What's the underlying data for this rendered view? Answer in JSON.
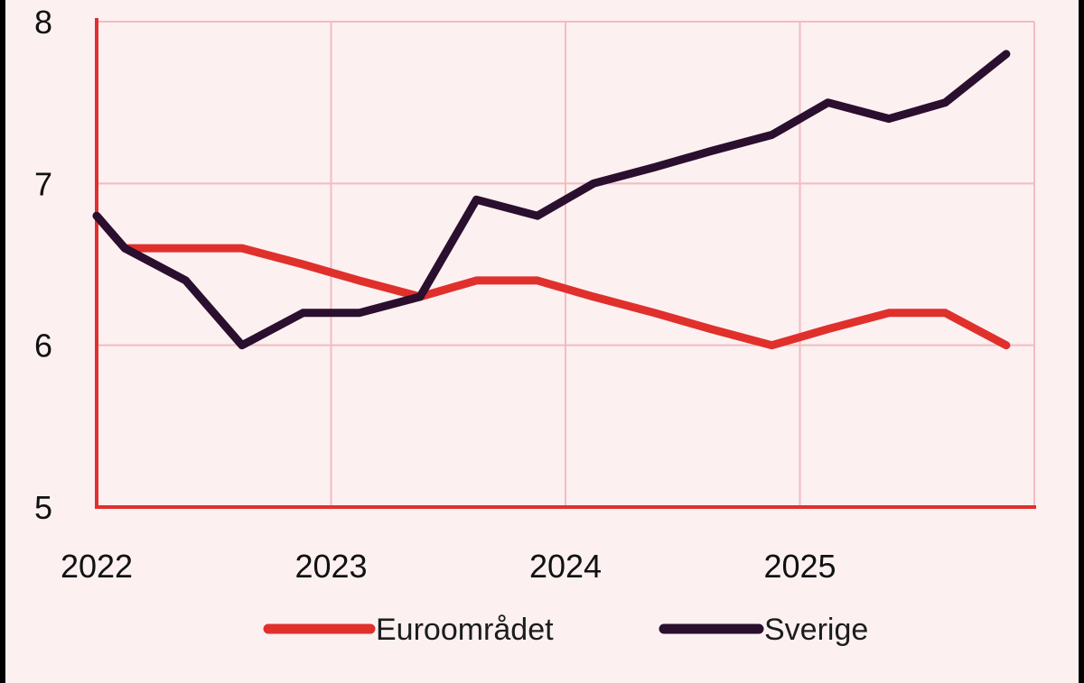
{
  "chart_data": {
    "type": "line",
    "xlim": [
      2022,
      2026
    ],
    "ylim": [
      5,
      8
    ],
    "x_ticks": [
      "2022",
      "2023",
      "2024",
      "2025"
    ],
    "y_ticks": [
      "5",
      "6",
      "7",
      "8"
    ],
    "grid": true,
    "legend_position": "bottom",
    "series": [
      {
        "name": "Euroområdet",
        "color": "#e0302c",
        "points": [
          [
            2022.0,
            6.8
          ],
          [
            2022.12,
            6.6
          ],
          [
            2022.25,
            6.6
          ],
          [
            2022.38,
            6.6
          ],
          [
            2022.62,
            6.6
          ],
          [
            2022.88,
            6.5
          ],
          [
            2023.12,
            6.4
          ],
          [
            2023.38,
            6.3
          ],
          [
            2023.62,
            6.4
          ],
          [
            2023.88,
            6.4
          ],
          [
            2024.12,
            6.3
          ],
          [
            2024.38,
            6.2
          ],
          [
            2024.62,
            6.1
          ],
          [
            2024.88,
            6.0
          ],
          [
            2025.12,
            6.1
          ],
          [
            2025.38,
            6.2
          ],
          [
            2025.62,
            6.2
          ],
          [
            2025.88,
            6.0
          ]
        ]
      },
      {
        "name": "Sverige",
        "color": "#2a0f2e",
        "points": [
          [
            2022.0,
            6.8
          ],
          [
            2022.12,
            6.6
          ],
          [
            2022.38,
            6.4
          ],
          [
            2022.62,
            6.0
          ],
          [
            2022.88,
            6.2
          ],
          [
            2023.12,
            6.2
          ],
          [
            2023.38,
            6.3
          ],
          [
            2023.62,
            6.9
          ],
          [
            2023.88,
            6.8
          ],
          [
            2024.12,
            7.0
          ],
          [
            2024.38,
            7.1
          ],
          [
            2024.62,
            7.2
          ],
          [
            2024.88,
            7.3
          ],
          [
            2025.12,
            7.5
          ],
          [
            2025.38,
            7.4
          ],
          [
            2025.62,
            7.5
          ],
          [
            2025.88,
            7.8
          ]
        ]
      }
    ]
  }
}
